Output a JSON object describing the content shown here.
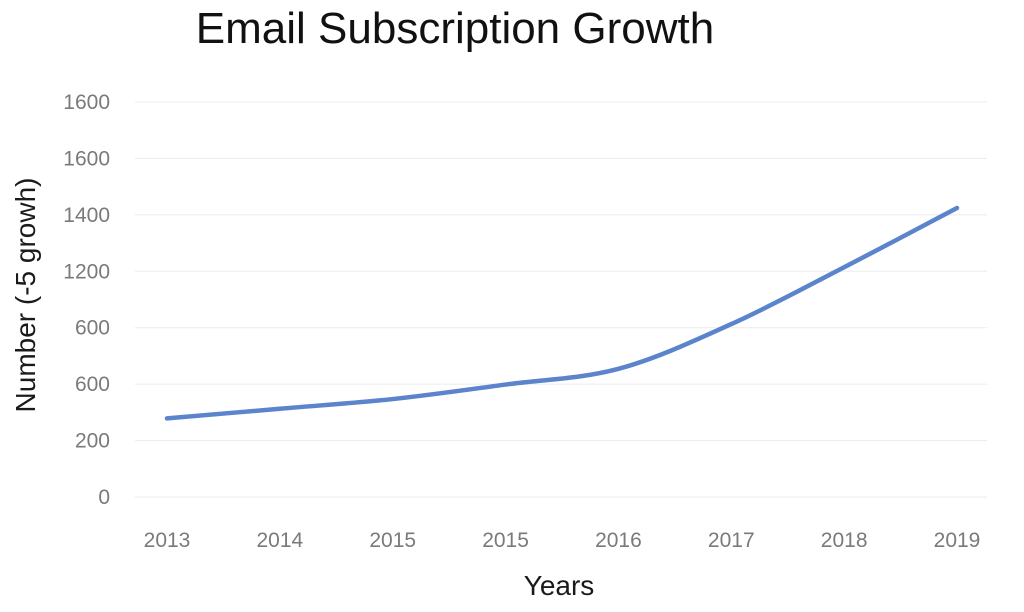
{
  "chart_data": {
    "type": "line",
    "title": "Email Subscription Growth",
    "xlabel": "Years",
    "ylabel": "Number (-5 growh)",
    "categories": [
      "2013",
      "2014",
      "2015",
      "2015",
      "2016",
      "2017",
      "2018",
      "2019"
    ],
    "y_tick_labels": [
      "0",
      "200",
      "600",
      "600",
      "1200",
      "1400",
      "1600",
      "1600"
    ],
    "ylim": [
      0,
      1400
    ],
    "grid": true,
    "legend": "none",
    "series": [
      {
        "values": [
          325,
          365,
          405,
          465,
          530,
          715,
          950,
          1195
        ],
        "color": "#5b84cc"
      }
    ],
    "colors": {
      "gridline": "#ebebeb",
      "tick_text": "#7a7a7a"
    }
  }
}
